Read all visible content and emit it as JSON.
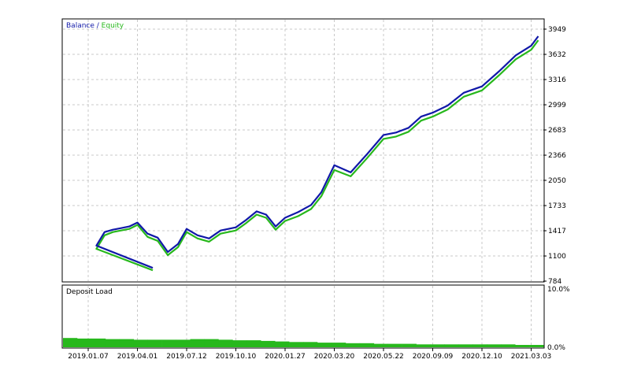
{
  "chart_data": [
    {
      "type": "line",
      "panel": "balance-equity",
      "legend": {
        "placement": "top-left",
        "series_a": "Balance",
        "separator": " / ",
        "series_b": "Equity"
      },
      "colors": {
        "balance": "#1018a8",
        "equity": "#27b81c",
        "grid": "#c8c8c8",
        "frame": "#000000"
      },
      "y_ticks": [
        "3949",
        "3632",
        "3316",
        "2999",
        "2683",
        "2366",
        "2050",
        "1733",
        "1417",
        "1100",
        "784"
      ],
      "ylim": [
        784,
        3949
      ],
      "x_ticks": [
        "2019.01.07",
        "2019.04.01",
        "2019.07.12",
        "2019.10.10",
        "2020.01.27",
        "2020.03.20",
        "2020.05.22",
        "2020.09.09",
        "2020.12.10",
        "2021.03.03"
      ],
      "grid": true,
      "series": [
        {
          "name": "Balance",
          "x": [
            "2019.01.07",
            "2019.01.21",
            "2019.02.04",
            "2019.02.18",
            "2019.03.04",
            "2019.03.18",
            "2019.04.01",
            "2019.04.22",
            "2019.05.13",
            "2019.06.03",
            "2019.06.24",
            "2019.07.12",
            "2019.08.01",
            "2019.08.22",
            "2019.09.12",
            "2019.10.10",
            "2019.11.01",
            "2019.11.25",
            "2019.12.16",
            "2020.01.06",
            "2020.01.27",
            "2020.02.10",
            "2020.02.24",
            "2020.03.06",
            "2020.03.20",
            "2020.04.10",
            "2020.05.01",
            "2020.05.22",
            "2020.06.19",
            "2020.07.17",
            "2020.08.14",
            "2020.09.09",
            "2020.10.07",
            "2020.11.06",
            "2020.12.10",
            "2021.01.08",
            "2021.02.05",
            "2021.03.03",
            "2021.03.15"
          ],
          "y": [
            950,
            1230,
            1400,
            1430,
            1450,
            1470,
            1520,
            1380,
            1330,
            1150,
            1250,
            1440,
            1360,
            1320,
            1420,
            1460,
            1550,
            1660,
            1620,
            1470,
            1580,
            1650,
            1740,
            1900,
            2240,
            2150,
            2380,
            2620,
            2650,
            2710,
            2850,
            2900,
            2990,
            3150,
            3230,
            3420,
            3620,
            3740,
            3860
          ]
        },
        {
          "name": "Equity",
          "x": [
            "2019.01.07",
            "2019.01.21",
            "2019.02.04",
            "2019.02.18",
            "2019.03.04",
            "2019.03.18",
            "2019.04.01",
            "2019.04.22",
            "2019.05.13",
            "2019.06.03",
            "2019.06.24",
            "2019.07.12",
            "2019.08.01",
            "2019.08.22",
            "2019.09.12",
            "2019.10.10",
            "2019.11.01",
            "2019.11.25",
            "2019.12.16",
            "2020.01.06",
            "2020.01.27",
            "2020.02.10",
            "2020.02.24",
            "2020.03.06",
            "2020.03.20",
            "2020.04.10",
            "2020.05.01",
            "2020.05.22",
            "2020.06.19",
            "2020.07.17",
            "2020.08.14",
            "2020.09.09",
            "2020.10.07",
            "2020.11.06",
            "2020.12.10",
            "2021.01.08",
            "2021.02.05",
            "2021.03.03",
            "2021.03.15"
          ],
          "y": [
            920,
            1190,
            1360,
            1400,
            1420,
            1440,
            1490,
            1340,
            1290,
            1110,
            1210,
            1400,
            1320,
            1280,
            1380,
            1420,
            1510,
            1620,
            1580,
            1430,
            1540,
            1600,
            1690,
            1850,
            2180,
            2100,
            2330,
            2570,
            2600,
            2660,
            2800,
            2850,
            2940,
            3100,
            3180,
            3370,
            3570,
            3690,
            3810
          ]
        }
      ]
    },
    {
      "type": "bar",
      "panel": "deposit-load",
      "title": "Deposit Load",
      "color": "#27b81c",
      "y_ticks": [
        "10.0%",
        "0.0%"
      ],
      "ylim": [
        0,
        10
      ],
      "values": [
        1.6,
        1.5,
        1.5,
        1.4,
        1.4,
        1.3,
        1.3,
        1.3,
        1.3,
        1.4,
        1.4,
        1.3,
        1.2,
        1.2,
        1.1,
        1.0,
        0.9,
        0.9,
        0.8,
        0.8,
        0.7,
        0.7,
        0.6,
        0.6,
        0.6,
        0.5,
        0.5,
        0.5,
        0.5,
        0.5,
        0.5,
        0.5,
        0.4,
        0.4
      ]
    }
  ]
}
